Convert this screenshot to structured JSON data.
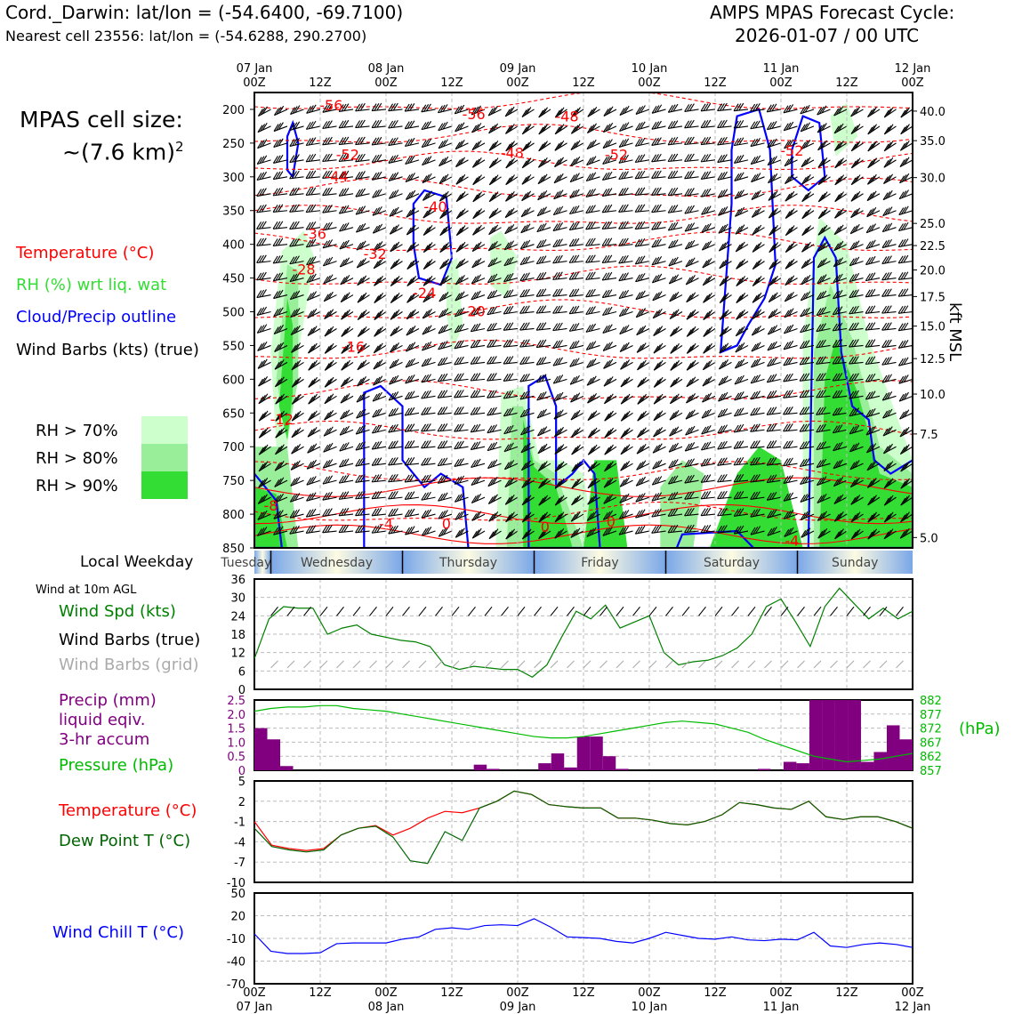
{
  "header": {
    "station_line": "Cord._Darwin: lat/lon = (-54.6400, -69.7100)",
    "cell_line": "Nearest cell 23556: lat/lon = (-54.6288, 290.2700)",
    "cycle_line1": "AMPS MPAS Forecast Cycle:",
    "cycle_line2": "2026-01-07 / 00 UTC"
  },
  "cell_size": {
    "line1": "MPAS cell size:",
    "line2": "~(7.6 km)",
    "sup": "2"
  },
  "legend": {
    "temperature": "Temperature (°C)",
    "rh": "RH (%) wrt liq. wat",
    "cloud": "Cloud/Precip outline",
    "wind": "Wind Barbs (kts) (true)",
    "rh70": "RH > 70%",
    "rh80": "RH > 80%",
    "rh90": "RH > 90%"
  },
  "colors": {
    "temp": "#ff0000",
    "rh70": "#ccffcc",
    "rh80": "#99ee99",
    "rh90": "#33dd33",
    "cloud": "#0000ff",
    "windspd": "#008000",
    "precip": "#800080",
    "pressure": "#00bb00",
    "dew": "#006400",
    "windchill": "#0000ff",
    "grid": "#bbbbbb"
  },
  "time_axis": {
    "labels": [
      {
        "day": "07 Jan",
        "hour": "00Z"
      },
      {
        "day": "",
        "hour": "12Z"
      },
      {
        "day": "08 Jan",
        "hour": "00Z"
      },
      {
        "day": "",
        "hour": "12Z"
      },
      {
        "day": "09 Jan",
        "hour": "00Z"
      },
      {
        "day": "",
        "hour": "12Z"
      },
      {
        "day": "10 Jan",
        "hour": "00Z"
      },
      {
        "day": "",
        "hour": "12Z"
      },
      {
        "day": "11 Jan",
        "hour": "00Z"
      },
      {
        "day": "",
        "hour": "12Z"
      },
      {
        "day": "12 Jan",
        "hour": "00Z"
      }
    ]
  },
  "cross_section": {
    "left_axis": [
      "200",
      "250",
      "300",
      "350",
      "400",
      "450",
      "500",
      "550",
      "600",
      "650",
      "700",
      "750",
      "800",
      "850"
    ],
    "right_axis": [
      "40.0",
      "35.0",
      "30.0",
      "25.0",
      "22.5",
      "20.0",
      "17.5",
      "15.0",
      "12.5",
      "10.0",
      "7.5",
      "5.0"
    ],
    "right_label": "kft MSL",
    "temp_labels": [
      "-56",
      "-56",
      "-48",
      "-52",
      "-48",
      "-52",
      "-52",
      "-44",
      "-40",
      "-36",
      "-32",
      "-28",
      "-24",
      "-20",
      "-16",
      "-12",
      "-8",
      "-4",
      "0",
      "0",
      "0",
      "-4"
    ]
  },
  "weekday": {
    "label": "Local Weekday",
    "days": [
      "Tuesday",
      "Wednesday",
      "Thursday",
      "Friday",
      "Saturday",
      "Sunday"
    ]
  },
  "panels": {
    "wind_title": "Wind at 10m AGL",
    "wind_spd": "Wind Spd (kts)",
    "wind_barbs_true": "Wind Barbs (true)",
    "wind_barbs_grid": "Wind Barbs (grid)",
    "precip1": "Precip (mm)",
    "precip2": "liquid eqiv.",
    "precip3": "3-hr accum",
    "pressure": "Pressure (hPa)",
    "hpa": "(hPa)",
    "temperature": "Temperature (°C)",
    "dewpoint": "Dew Point T (°C)",
    "windchill": "Wind Chill T (°C)"
  },
  "chart_data": [
    {
      "type": "line",
      "title": "Wind at 10m AGL",
      "ylabel": "Wind Spd (kts)",
      "ylim": [
        0,
        36
      ],
      "yticks": [
        "0",
        "6",
        "12",
        "18",
        "24",
        "30",
        "36"
      ],
      "x_hours_step": 3,
      "series": [
        {
          "name": "Wind Spd (kts)",
          "values": [
            10,
            23,
            27,
            26.5,
            26.5,
            18,
            20,
            21,
            18,
            17,
            16,
            15.5,
            14,
            8,
            6.5,
            7.5,
            7,
            6.5,
            6.5,
            4,
            8,
            17,
            25.5,
            23,
            27.5,
            20,
            22,
            24,
            12,
            8,
            9,
            9.5,
            11,
            13.5,
            18,
            27,
            29.5,
            22,
            14,
            27,
            33,
            28,
            23,
            26.5,
            23,
            25.5
          ]
        }
      ]
    },
    {
      "type": "bar",
      "title": "Precip (mm) liquid eqiv. 3-hr accum",
      "ylim": [
        0,
        2.5
      ],
      "yticks": [
        "0",
        "0.5",
        "1.0",
        "1.5",
        "2.0",
        "2.5"
      ],
      "values": [
        1.5,
        1.1,
        0.15,
        0,
        0,
        0,
        0,
        0,
        0,
        0,
        0,
        0,
        0,
        0,
        0,
        0,
        0,
        0.2,
        0.05,
        0,
        0,
        0,
        0.25,
        0.6,
        0.1,
        1.2,
        1.2,
        0.5,
        0.05,
        0,
        0,
        0,
        0,
        0,
        0,
        0,
        0,
        0,
        0,
        0.05,
        0,
        0.3,
        0.25,
        2.5,
        2.5,
        2.5,
        2.5,
        0.3,
        0.65,
        1.6,
        1.1
      ]
    },
    {
      "type": "line",
      "title": "Pressure (hPa)",
      "ylim": [
        857,
        882
      ],
      "yticks": [
        "857",
        "862",
        "867",
        "872",
        "877",
        "882"
      ],
      "series": [
        {
          "name": "Pressure (hPa)",
          "values": [
            878,
            879,
            879.5,
            879.5,
            880,
            880,
            879,
            878.5,
            878,
            877,
            876,
            875,
            874,
            873,
            872,
            871,
            870,
            869,
            868.5,
            868.5,
            869,
            870,
            871,
            872,
            873,
            874,
            874.5,
            874,
            873.5,
            872,
            870.5,
            868,
            866,
            864,
            862,
            861,
            860,
            860.5,
            861,
            862,
            863
          ]
        }
      ]
    },
    {
      "type": "line",
      "title": "Temperature and Dew Point",
      "ylim": [
        -10,
        5
      ],
      "yticks": [
        "-10",
        "-7",
        "-4",
        "-1",
        "2",
        "5"
      ],
      "series": [
        {
          "name": "Temperature (°C)",
          "values": [
            -1,
            -4.5,
            -5,
            -5.3,
            -5,
            -3,
            -2,
            -1.6,
            -3,
            -2,
            -0.5,
            0.5,
            0.3,
            1,
            2,
            3.5,
            3,
            1.5,
            1.2,
            1,
            1,
            -0.5,
            -0.5,
            -0.8,
            -1.3,
            -1.5,
            -1,
            0,
            1.8,
            1.5,
            1,
            0.8,
            2,
            -0.3,
            -0.7,
            -0.3,
            -0.3,
            -1,
            -2
          ]
        },
        {
          "name": "Dew Point T (°C)",
          "values": [
            -2,
            -4.7,
            -5.2,
            -5.5,
            -5.2,
            -3,
            -2,
            -1.7,
            -3.3,
            -6.8,
            -7.2,
            -2.5,
            -3.8,
            1,
            2,
            3.5,
            3,
            1.5,
            1.2,
            1,
            1,
            -0.5,
            -0.5,
            -0.8,
            -1.3,
            -1.5,
            -1,
            0,
            1.8,
            1.5,
            1,
            0.8,
            2,
            -0.3,
            -0.7,
            -0.3,
            -0.3,
            -1,
            -2
          ]
        }
      ]
    },
    {
      "type": "line",
      "title": "Wind Chill T (°C)",
      "ylim": [
        -70,
        50
      ],
      "yticks": [
        "-70",
        "-40",
        "-10",
        "20",
        "50"
      ],
      "series": [
        {
          "name": "Wind Chill T (°C)",
          "values": [
            -4,
            -27,
            -30,
            -30,
            -29,
            -17,
            -16,
            -16,
            -16,
            -11,
            -8,
            2,
            4,
            2,
            7,
            8,
            7,
            16,
            5,
            -8,
            -9,
            -10,
            -14,
            -16,
            -10,
            -2,
            -6,
            -10,
            -11,
            -8,
            -12,
            -13,
            -11,
            -12,
            -2,
            -20,
            -22,
            -18,
            -16,
            -18,
            -22
          ]
        }
      ]
    }
  ]
}
